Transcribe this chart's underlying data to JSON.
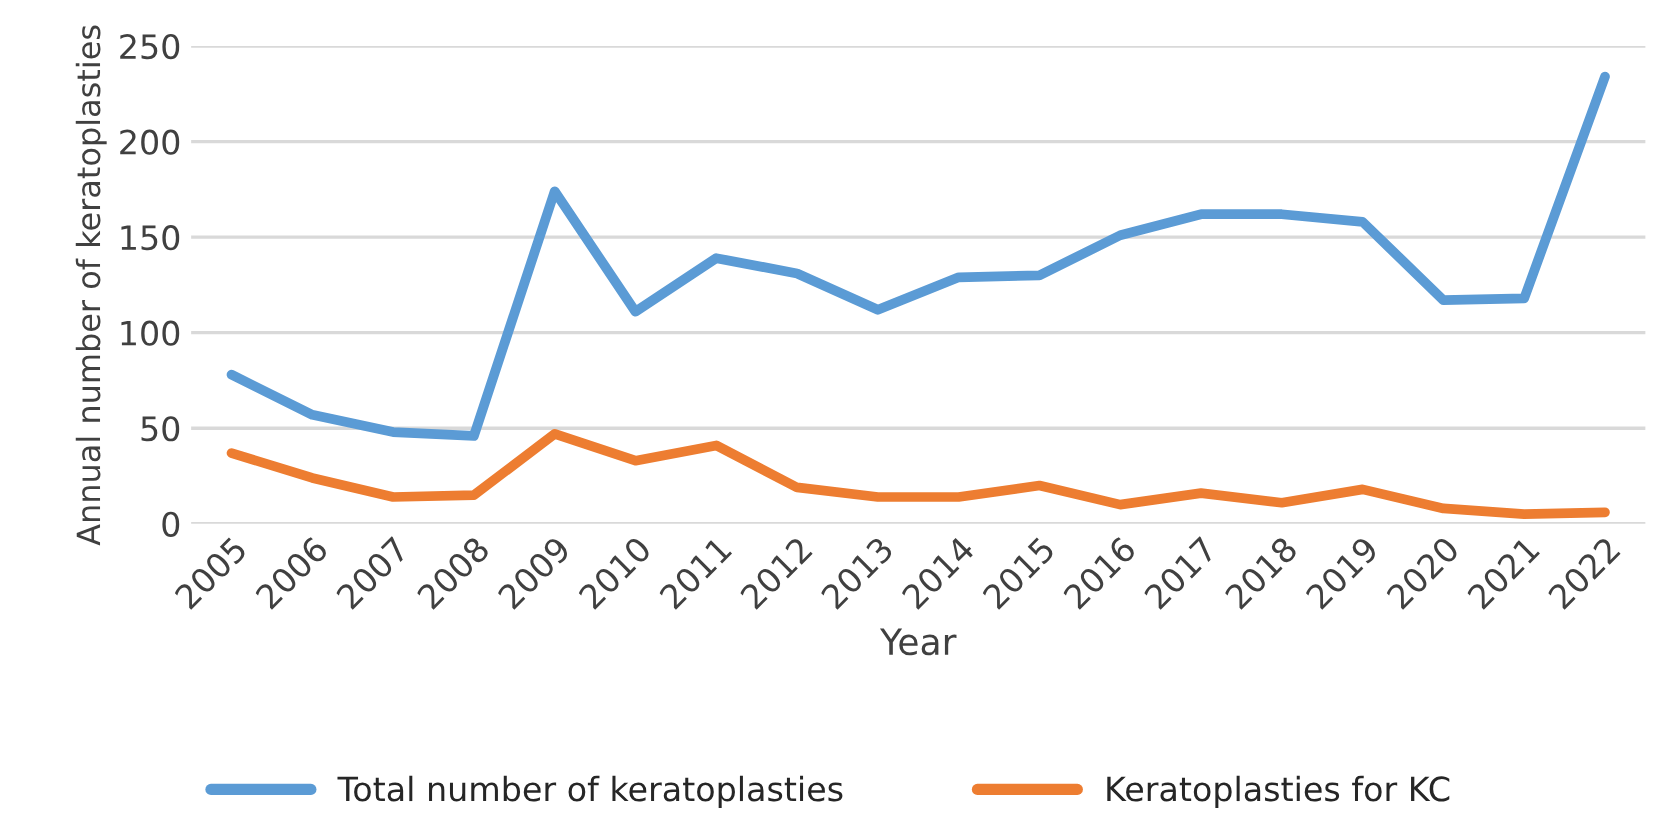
{
  "chart_data": {
    "type": "line",
    "xlabel": "Year",
    "ylabel": "Annual number of keratoplasties",
    "categories": [
      "2005",
      "2006",
      "2007",
      "2008",
      "2009",
      "2010",
      "2011",
      "2012",
      "2013",
      "2014",
      "2015",
      "2016",
      "2017",
      "2018",
      "2019",
      "2020",
      "2021",
      "2022"
    ],
    "series": [
      {
        "name": "Total number of keratoplasties",
        "color": "#5b9bd5",
        "values": [
          78,
          57,
          48,
          46,
          174,
          111,
          139,
          131,
          112,
          129,
          130,
          151,
          162,
          162,
          158,
          117,
          118,
          234
        ]
      },
      {
        "name": "Keratoplasties for KC",
        "color": "#ed7d31",
        "values": [
          37,
          24,
          14,
          15,
          47,
          33,
          41,
          19,
          14,
          14,
          20,
          10,
          16,
          11,
          18,
          8,
          5,
          6
        ]
      }
    ],
    "ylim": [
      0,
      250
    ],
    "yticks": [
      0,
      50,
      100,
      150,
      200,
      250
    ],
    "grid": "y",
    "legend": "bottom",
    "marker": "none",
    "line_style": "solid"
  }
}
